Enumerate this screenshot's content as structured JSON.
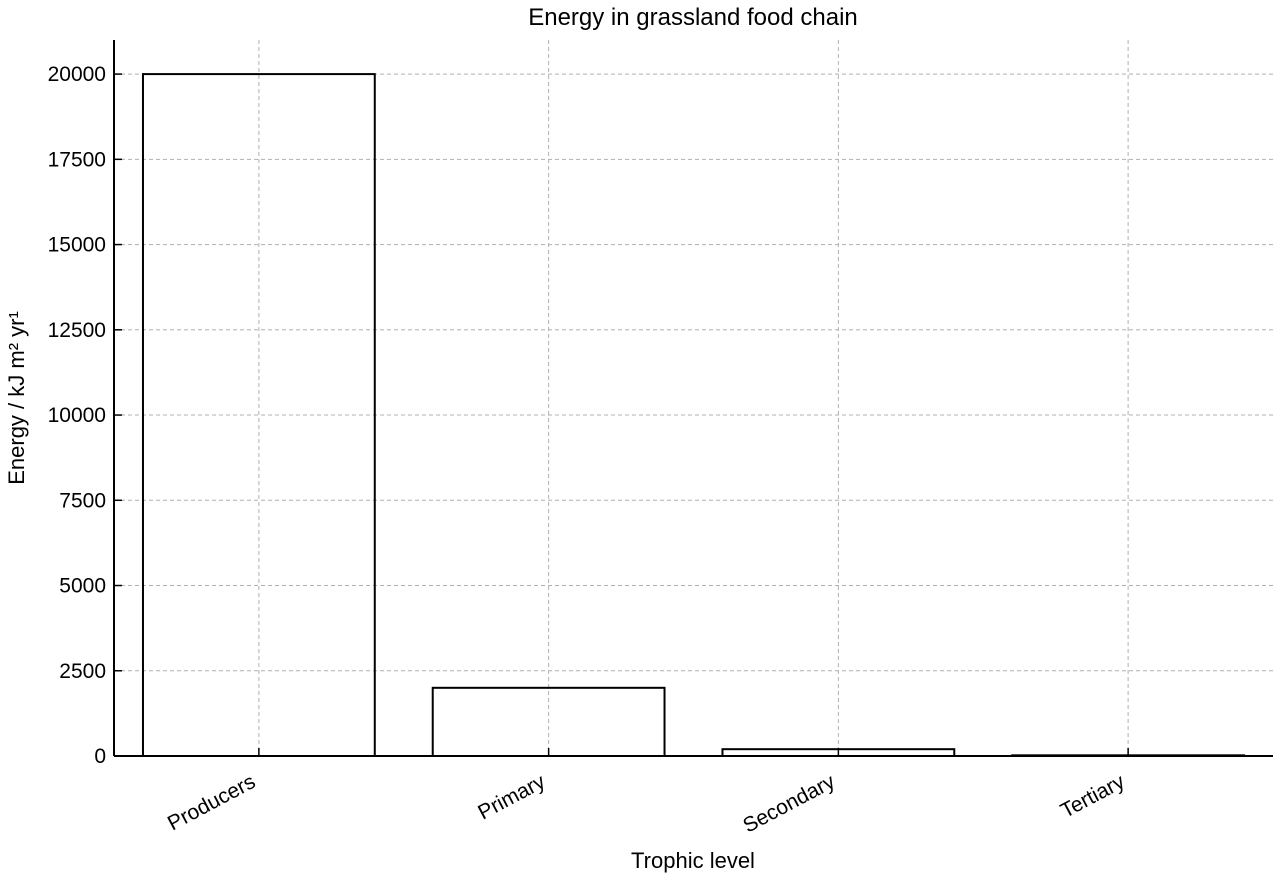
{
  "chart_data": {
    "type": "bar",
    "title": "Energy in grassland food chain",
    "xlabel": "Trophic level",
    "ylabel": "Energy / kJ m² yr¹",
    "categories": [
      "Producers",
      "Primary",
      "Secondary",
      "Tertiary"
    ],
    "values": [
      20000,
      2000,
      200,
      20
    ],
    "ylim": [
      0,
      21000
    ],
    "yticks": [
      0,
      2500,
      5000,
      7500,
      10000,
      12500,
      15000,
      17500,
      20000
    ],
    "grid": true,
    "bar_fill": "#ffffff",
    "bar_edge": "#000000"
  }
}
